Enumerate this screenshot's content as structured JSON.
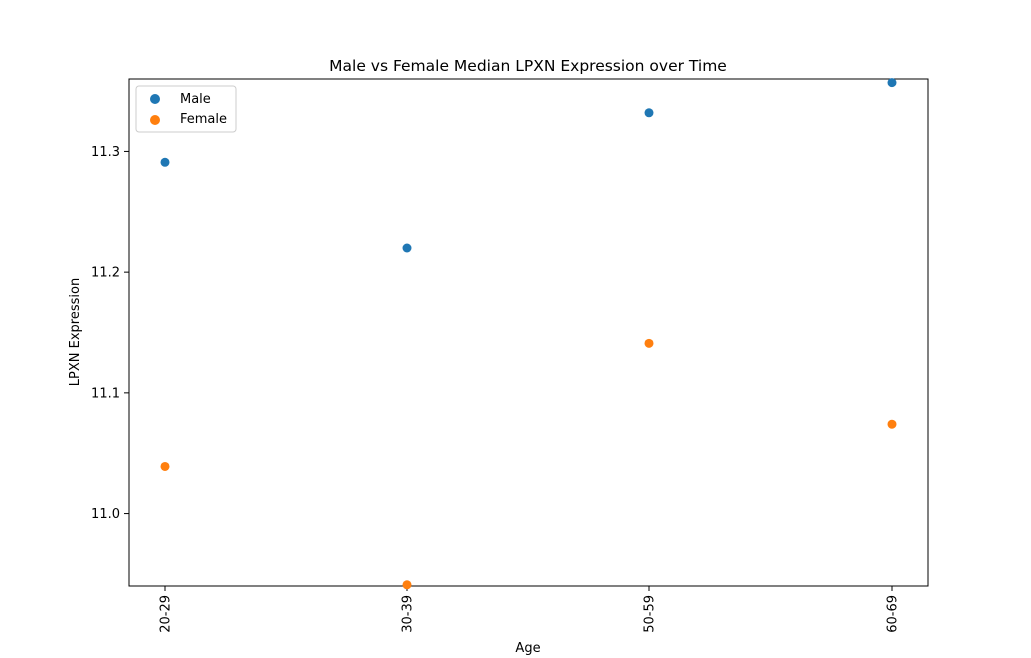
{
  "chart_data": {
    "type": "scatter",
    "title": "Male vs Female Median LPXN Expression over Time",
    "xlabel": "Age",
    "ylabel": "LPXN Expression",
    "categories": [
      "20-29",
      "30-39",
      "50-59",
      "60-69"
    ],
    "ylim": [
      10.94,
      11.36
    ],
    "yticks": [
      11.0,
      11.1,
      11.2,
      11.3
    ],
    "ytick_labels": [
      "11.0",
      "11.1",
      "11.2",
      "11.3"
    ],
    "grid": false,
    "legend_position": "top-left",
    "series": [
      {
        "name": "Male",
        "color": "#1f77b4",
        "values": [
          11.291,
          11.22,
          11.332,
          11.357
        ]
      },
      {
        "name": "Female",
        "color": "#ff7f0e",
        "values": [
          11.039,
          10.941,
          11.141,
          11.074
        ]
      }
    ]
  }
}
